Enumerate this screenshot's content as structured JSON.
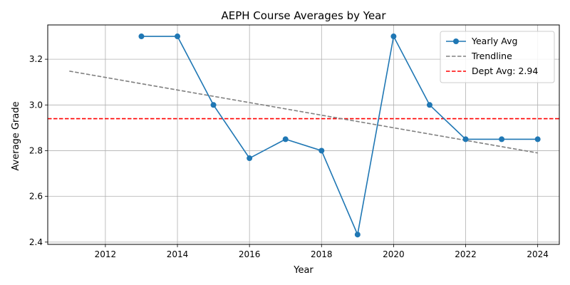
{
  "chart_data": {
    "type": "line",
    "title": "AEPH Course Averages by Year",
    "xlabel": "Year",
    "ylabel": "Average Grade",
    "xlim": [
      2010.4,
      2024.6
    ],
    "ylim": [
      2.39,
      3.35
    ],
    "x_ticks": [
      2012,
      2014,
      2016,
      2018,
      2020,
      2022,
      2024
    ],
    "y_ticks": [
      2.4,
      2.6,
      2.8,
      3.0,
      3.2
    ],
    "x_tick_labels": [
      "2012",
      "2014",
      "2016",
      "2018",
      "2020",
      "2022",
      "2024"
    ],
    "y_tick_labels": [
      "2.4",
      "2.6",
      "2.8",
      "3.0",
      "3.2"
    ],
    "grid": true,
    "legend_position": "top-right",
    "series": [
      {
        "name": "Yearly Avg",
        "color": "#1f77b4",
        "style": "solid",
        "marker": "circle",
        "x": [
          2013,
          2014,
          2015,
          2016,
          2017,
          2018,
          2019,
          2020,
          2021,
          2022,
          2023,
          2024
        ],
        "y": [
          3.3,
          3.3,
          3.0,
          2.767,
          2.85,
          2.8,
          2.433,
          3.3,
          3.0,
          2.85,
          2.85,
          2.85
        ]
      },
      {
        "name": "Trendline",
        "color": "#808080",
        "style": "dashed",
        "x": [
          2011,
          2024
        ],
        "y": [
          3.148,
          2.79
        ]
      }
    ],
    "reference_line": {
      "name": "Dept Avg: 2.94",
      "value": 2.94,
      "color": "#ff0000",
      "style": "dashed"
    }
  }
}
